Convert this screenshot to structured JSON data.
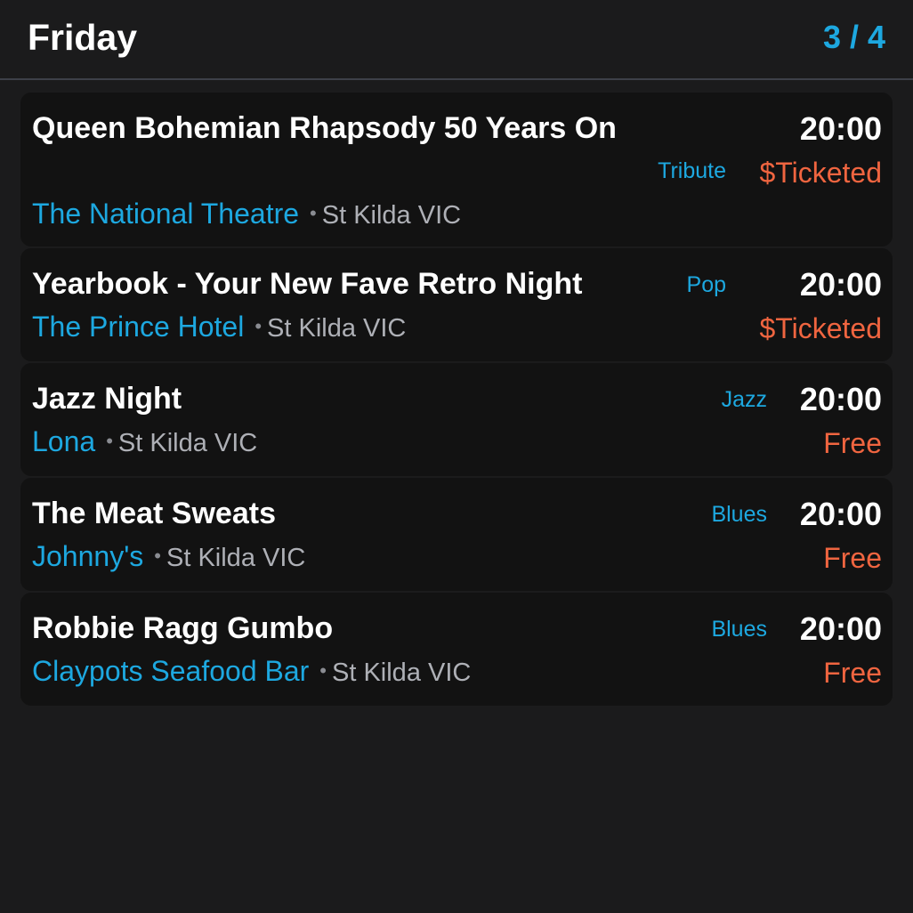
{
  "header": {
    "day": "Friday",
    "page_counter": "3 / 4"
  },
  "events": [
    {
      "title": "Queen Bohemian Rhapsody 50 Years On",
      "venue": "The National Theatre",
      "separator": "•",
      "suburb": "St Kilda VIC",
      "genre": "Tribute",
      "time": "20:00",
      "price": "$Ticketed"
    },
    {
      "title": "Yearbook - Your New Fave Retro Night",
      "venue": "The Prince Hotel",
      "separator": "•",
      "suburb": "St Kilda VIC",
      "genre": "Pop",
      "time": "20:00",
      "price": "$Ticketed"
    },
    {
      "title": "Jazz Night",
      "venue": "Lona",
      "separator": "•",
      "suburb": "St Kilda VIC",
      "genre": "Jazz",
      "time": "20:00",
      "price": "Free"
    },
    {
      "title": "The Meat Sweats",
      "venue": "Johnny's",
      "separator": "•",
      "suburb": "St Kilda VIC",
      "genre": "Blues",
      "time": "20:00",
      "price": "Free"
    },
    {
      "title": "Robbie Ragg Gumbo",
      "venue": "Claypots Seafood Bar",
      "separator": "•",
      "suburb": "St Kilda VIC",
      "genre": "Blues",
      "time": "20:00",
      "price": "Free"
    }
  ],
  "colors": {
    "background": "#1b1b1c",
    "card": "#121212",
    "accent": "#1da8e0",
    "price": "#f06540",
    "muted": "#aeb0b6"
  }
}
